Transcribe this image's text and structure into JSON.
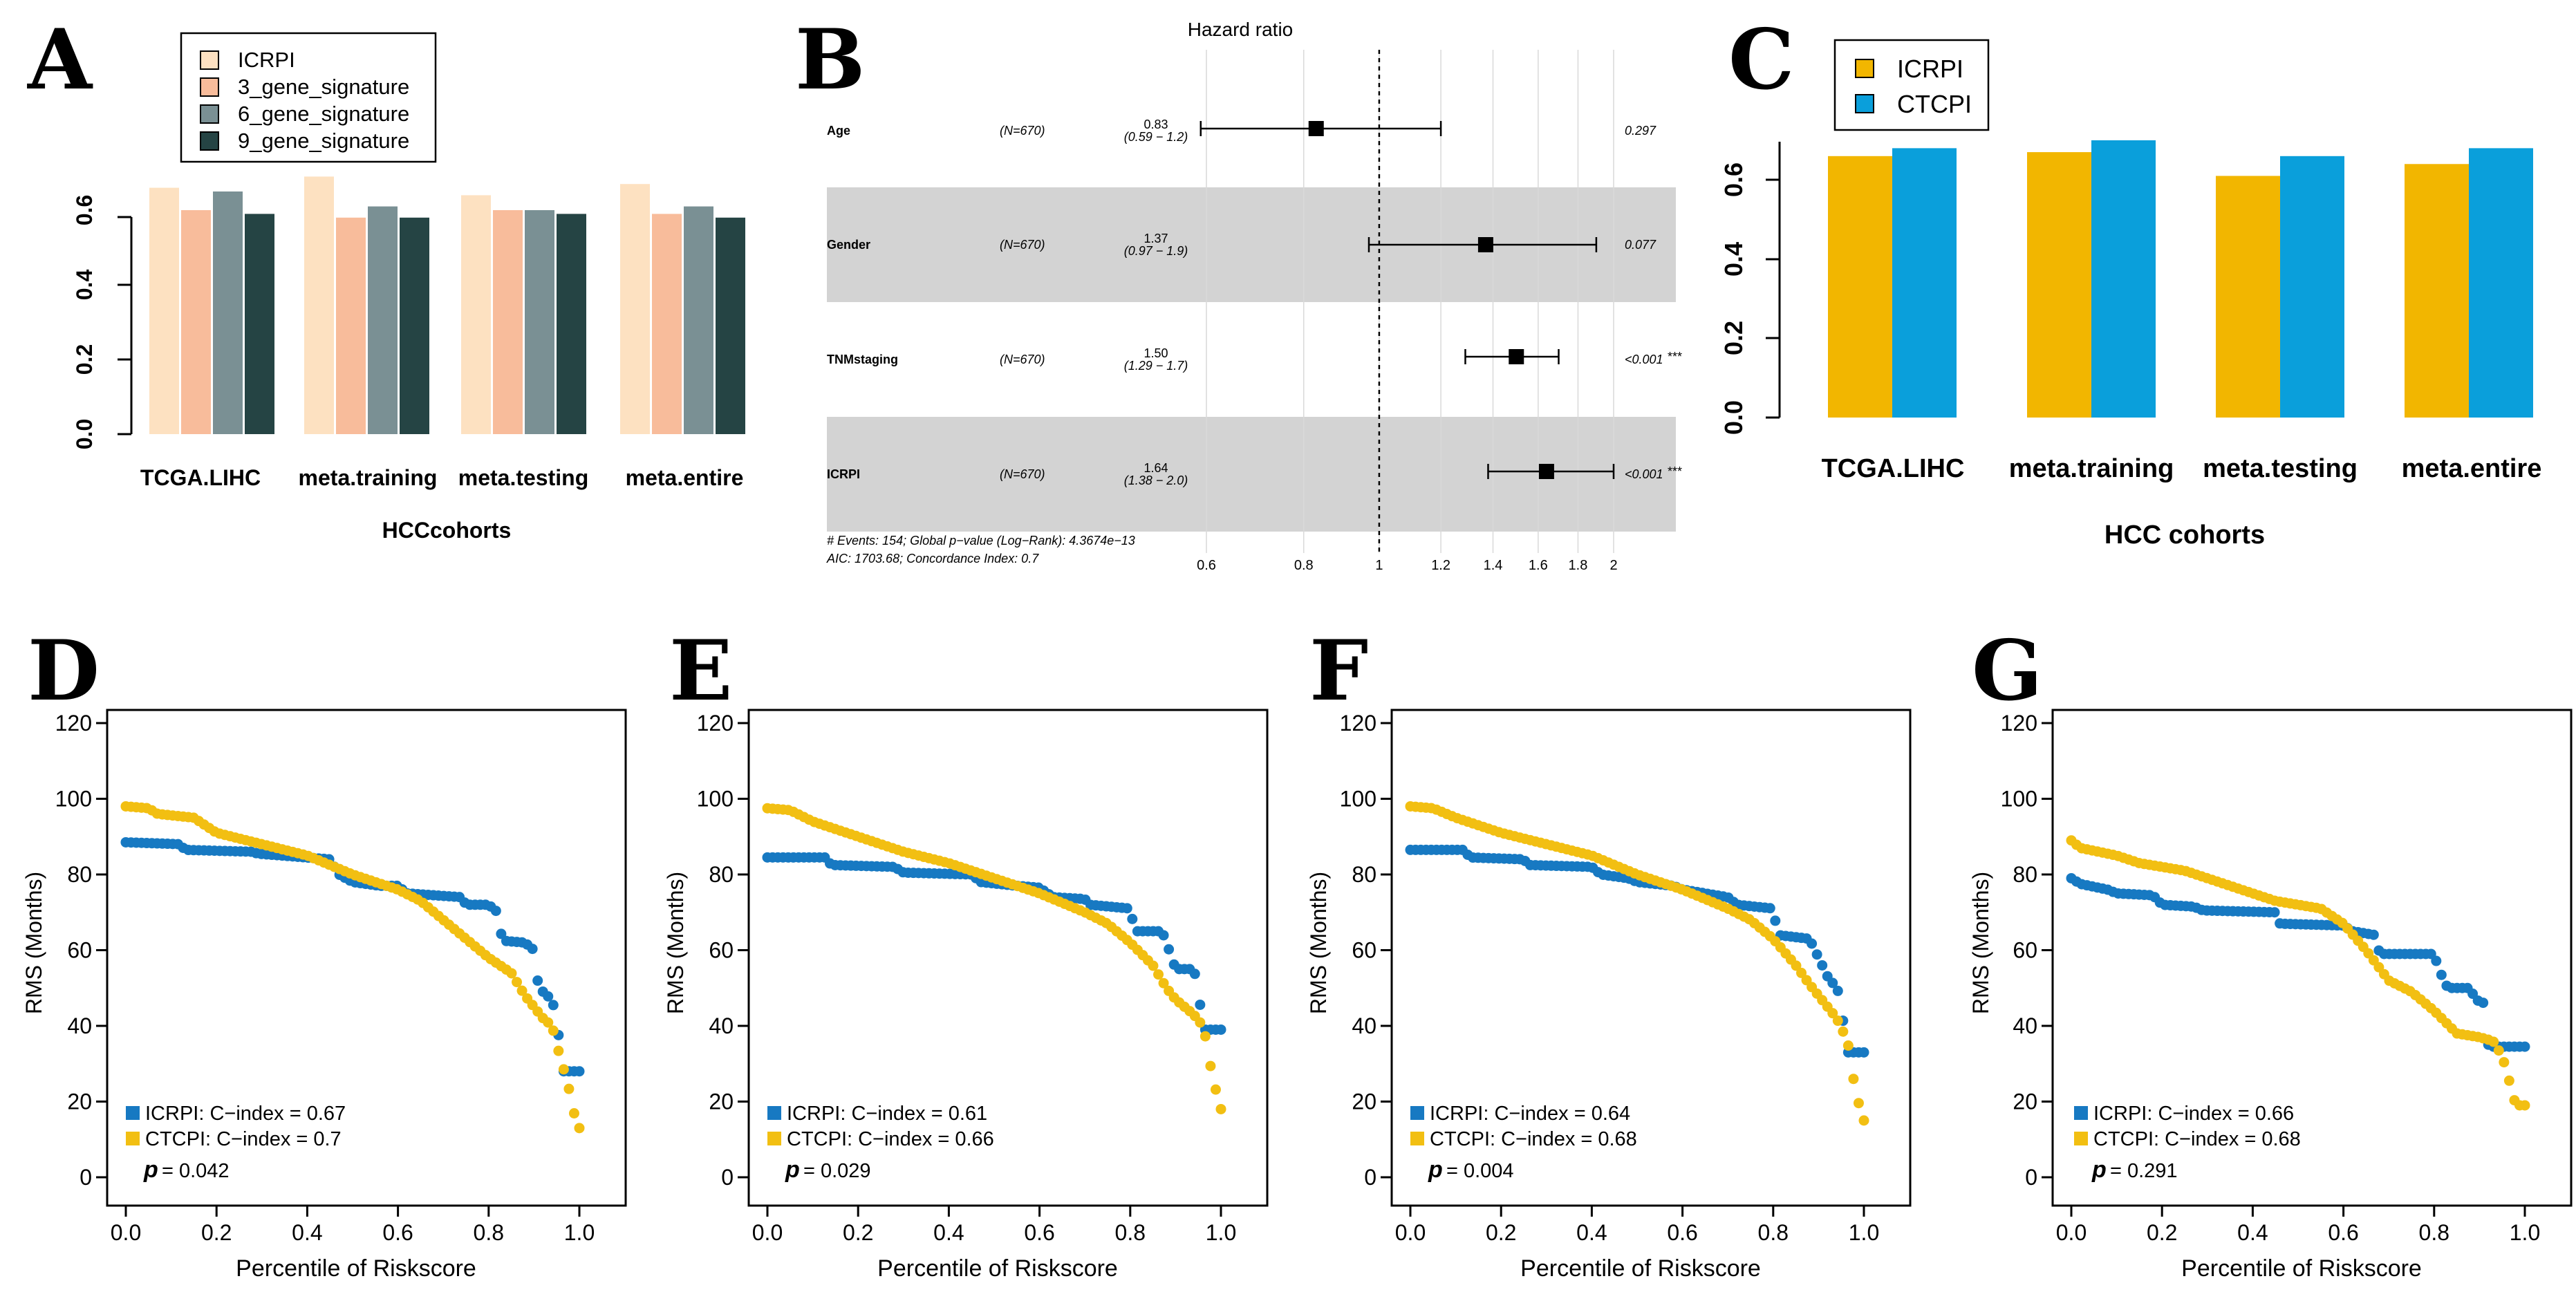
{
  "colors": {
    "icrpi_pale": "#FDE1C1",
    "gene3": "#F8BC9B",
    "gene6": "#7A9094",
    "gene9": "#254444",
    "icrpi_gold": "#F2B600",
    "ctcpi_blue": "#0A9FDB",
    "km_blue": "#1779C2",
    "km_gold": "#F2BF12",
    "forest_band": "#D3D3D3",
    "grid_line": "#D9D9D9"
  },
  "chart_data": [
    {
      "panel": "A",
      "type": "bar",
      "xlabel": "HCCcohorts",
      "ylabel": "",
      "ylim": [
        0,
        0.7
      ],
      "yticks": [
        0.0,
        0.2,
        0.4,
        0.6
      ],
      "ytick_labels": [
        "0.0",
        "0.2",
        "0.4",
        "0.6"
      ],
      "legend_position": "top-left",
      "categories": [
        "TCGA.LIHC",
        "meta.training",
        "meta.testing",
        "meta.entire"
      ],
      "series": [
        {
          "name": "ICRPI",
          "values": [
            0.66,
            0.69,
            0.64,
            0.67
          ]
        },
        {
          "name": "3_gene_signature",
          "values": [
            0.6,
            0.58,
            0.6,
            0.59
          ]
        },
        {
          "name": "6_gene_signature",
          "values": [
            0.65,
            0.61,
            0.6,
            0.61
          ]
        },
        {
          "name": "9_gene_signature",
          "values": [
            0.59,
            0.58,
            0.59,
            0.58
          ]
        }
      ]
    },
    {
      "panel": "B",
      "type": "forest",
      "title": "Hazard ratio",
      "x_ticks": [
        0.6,
        0.8,
        1,
        1.2,
        1.4,
        1.6,
        1.8,
        2
      ],
      "x_tick_labels": [
        "0.6",
        "0.8",
        "1",
        "1.2",
        "1.4",
        "1.6",
        "1.8",
        "2"
      ],
      "xlim": [
        0.55,
        2.3
      ],
      "reference": 1,
      "rows": [
        {
          "label": "Age",
          "n": "(N=670)",
          "hr": 0.83,
          "hr_label": "0.83",
          "ci_low": 0.59,
          "ci_high": 1.2,
          "ci_label": "(0.59 − 1.2)",
          "p": "0.297",
          "stars": ""
        },
        {
          "label": "Gender",
          "n": "(N=670)",
          "hr": 1.37,
          "hr_label": "1.37",
          "ci_low": 0.97,
          "ci_high": 1.9,
          "ci_label": "(0.97 − 1.9)",
          "p": "0.077",
          "stars": ""
        },
        {
          "label": "TNMstaging",
          "n": "(N=670)",
          "hr": 1.5,
          "hr_label": "1.50",
          "ci_low": 1.29,
          "ci_high": 1.7,
          "ci_label": "(1.29 − 1.7)",
          "p": "<0.001",
          "stars": "***"
        },
        {
          "label": "ICRPI",
          "n": "(N=670)",
          "hr": 1.64,
          "hr_label": "1.64",
          "ci_low": 1.38,
          "ci_high": 2.0,
          "ci_label": "(1.38 − 2.0)",
          "p": "<0.001",
          "stars": "***"
        }
      ],
      "footer_line1": "# Events: 154; Global p−value (Log−Rank): 4.3674e−13",
      "footer_line2": "AIC: 1703.68; Concordance Index: 0.7"
    },
    {
      "panel": "C",
      "type": "bar",
      "xlabel": "HCC cohorts",
      "ylabel": "",
      "ylim": [
        0,
        0.72
      ],
      "yticks": [
        0.0,
        0.2,
        0.4,
        0.6
      ],
      "ytick_labels": [
        "0.0",
        "0.2",
        "0.4",
        "0.6"
      ],
      "legend_position": "top-left",
      "categories": [
        "TCGA.LIHC",
        "meta.training",
        "meta.testing",
        "meta.entire"
      ],
      "series": [
        {
          "name": "ICRPI",
          "values": [
            0.66,
            0.67,
            0.61,
            0.64
          ]
        },
        {
          "name": "CTCPI",
          "values": [
            0.68,
            0.7,
            0.66,
            0.68
          ]
        }
      ]
    },
    {
      "panel": "D",
      "type": "scatter",
      "xlabel": "Percentile of Riskscore",
      "ylabel": "RMS (Months)",
      "xlim": [
        0,
        1
      ],
      "ylim": [
        0,
        120
      ],
      "xticks": [
        "0.0",
        "0.2",
        "0.4",
        "0.6",
        "0.8",
        "1.0"
      ],
      "yticks": [
        "0",
        "20",
        "40",
        "60",
        "80",
        "100",
        "120"
      ],
      "legend": [
        "ICRPI: C−index = 0.67",
        "CTCPI: C−index = 0.7"
      ],
      "p_label": "p",
      "p_value": "= 0.042",
      "series": [
        {
          "name": "ICRPI",
          "points": [
            [
              0.0,
              88.5
            ],
            [
              0.12,
              88
            ],
            [
              0.13,
              86.5
            ],
            [
              0.28,
              86
            ],
            [
              0.29,
              85.5
            ],
            [
              0.45,
              84
            ],
            [
              0.47,
              80
            ],
            [
              0.5,
              78
            ],
            [
              0.56,
              77
            ],
            [
              0.6,
              77
            ],
            [
              0.62,
              75
            ],
            [
              0.74,
              74
            ],
            [
              0.75,
              72
            ],
            [
              0.8,
              72
            ],
            [
              0.82,
              70
            ],
            [
              0.83,
              62.5
            ],
            [
              0.88,
              62
            ],
            [
              0.9,
              60
            ],
            [
              0.91,
              50
            ],
            [
              0.93,
              48
            ],
            [
              0.95,
              44
            ],
            [
              0.96,
              28
            ],
            [
              1.0,
              28
            ]
          ]
        },
        {
          "name": "CTCPI",
          "points": [
            [
              0.0,
              98
            ],
            [
              0.05,
              97.5
            ],
            [
              0.07,
              96
            ],
            [
              0.15,
              95
            ],
            [
              0.2,
              91
            ],
            [
              0.3,
              88
            ],
            [
              0.4,
              85
            ],
            [
              0.5,
              80
            ],
            [
              0.6,
              76
            ],
            [
              0.65,
              73
            ],
            [
              0.7,
              68
            ],
            [
              0.75,
              63
            ],
            [
              0.8,
              58
            ],
            [
              0.85,
              54
            ],
            [
              0.88,
              48
            ],
            [
              0.9,
              45
            ],
            [
              0.92,
              42
            ],
            [
              0.94,
              40
            ],
            [
              0.95,
              35
            ],
            [
              0.96,
              31
            ],
            [
              0.98,
              22
            ],
            [
              0.99,
              16
            ],
            [
              1.0,
              13
            ]
          ]
        }
      ]
    },
    {
      "panel": "E",
      "type": "scatter",
      "xlabel": "Percentile of Riskscore",
      "ylabel": "RMS (Months)",
      "xlim": [
        0,
        1
      ],
      "ylim": [
        0,
        120
      ],
      "xticks": [
        "0.0",
        "0.2",
        "0.4",
        "0.6",
        "0.8",
        "1.0"
      ],
      "yticks": [
        "0",
        "20",
        "40",
        "60",
        "80",
        "100",
        "120"
      ],
      "legend": [
        "ICRPI: C−index = 0.61",
        "CTCPI: C−index = 0.66"
      ],
      "p_label": "p",
      "p_value": "= 0.029",
      "series": [
        {
          "name": "ICRPI",
          "points": [
            [
              0.0,
              84.5
            ],
            [
              0.13,
              84.5
            ],
            [
              0.14,
              82.5
            ],
            [
              0.28,
              82
            ],
            [
              0.3,
              80.5
            ],
            [
              0.45,
              80
            ],
            [
              0.47,
              78
            ],
            [
              0.55,
              77
            ],
            [
              0.6,
              76.5
            ],
            [
              0.63,
              74
            ],
            [
              0.7,
              73.5
            ],
            [
              0.71,
              72
            ],
            [
              0.8,
              71
            ],
            [
              0.81,
              65
            ],
            [
              0.87,
              65
            ],
            [
              0.88,
              62
            ],
            [
              0.9,
              55
            ],
            [
              0.94,
              55
            ],
            [
              0.95,
              50
            ],
            [
              0.96,
              39
            ],
            [
              1.0,
              39
            ]
          ]
        },
        {
          "name": "CTCPI",
          "points": [
            [
              0.0,
              97.5
            ],
            [
              0.05,
              97
            ],
            [
              0.1,
              94
            ],
            [
              0.2,
              90
            ],
            [
              0.3,
              86
            ],
            [
              0.4,
              83
            ],
            [
              0.5,
              79
            ],
            [
              0.6,
              75
            ],
            [
              0.7,
              70
            ],
            [
              0.75,
              67
            ],
            [
              0.8,
              62
            ],
            [
              0.85,
              56
            ],
            [
              0.88,
              50
            ],
            [
              0.9,
              47
            ],
            [
              0.92,
              45
            ],
            [
              0.94,
              43
            ],
            [
              0.96,
              40
            ],
            [
              0.97,
              35
            ],
            [
              0.98,
              27
            ],
            [
              1.0,
              18
            ]
          ]
        }
      ]
    },
    {
      "panel": "F",
      "type": "scatter",
      "xlabel": "Percentile of Riskscore",
      "ylabel": "RMS (Months)",
      "xlim": [
        0,
        1
      ],
      "ylim": [
        0,
        120
      ],
      "xticks": [
        "0.0",
        "0.2",
        "0.4",
        "0.6",
        "0.8",
        "1.0"
      ],
      "yticks": [
        "0",
        "20",
        "40",
        "60",
        "80",
        "100",
        "120"
      ],
      "legend": [
        "ICRPI: C−index = 0.64",
        "CTCPI: C−index = 0.68"
      ],
      "p_label": "p",
      "p_value": "= 0.004",
      "series": [
        {
          "name": "ICRPI",
          "points": [
            [
              0.0,
              86.5
            ],
            [
              0.12,
              86.5
            ],
            [
              0.13,
              84.5
            ],
            [
              0.25,
              84
            ],
            [
              0.26,
              82.5
            ],
            [
              0.4,
              82
            ],
            [
              0.42,
              80
            ],
            [
              0.48,
              79
            ],
            [
              0.5,
              78
            ],
            [
              0.58,
              77
            ],
            [
              0.6,
              76
            ],
            [
              0.7,
              74
            ],
            [
              0.72,
              72
            ],
            [
              0.8,
              71
            ],
            [
              0.81,
              64
            ],
            [
              0.88,
              63
            ],
            [
              0.9,
              58
            ],
            [
              0.92,
              53
            ],
            [
              0.94,
              50
            ],
            [
              0.95,
              47
            ],
            [
              0.96,
              33
            ],
            [
              1.0,
              33
            ]
          ]
        },
        {
          "name": "CTCPI",
          "points": [
            [
              0.0,
              98
            ],
            [
              0.05,
              97.5
            ],
            [
              0.1,
              95
            ],
            [
              0.2,
              91
            ],
            [
              0.3,
              88
            ],
            [
              0.4,
              85
            ],
            [
              0.5,
              80
            ],
            [
              0.6,
              76
            ],
            [
              0.7,
              71
            ],
            [
              0.75,
              68
            ],
            [
              0.8,
              63
            ],
            [
              0.85,
              56
            ],
            [
              0.88,
              51
            ],
            [
              0.9,
              48
            ],
            [
              0.92,
              45
            ],
            [
              0.94,
              42
            ],
            [
              0.96,
              37
            ],
            [
              0.97,
              33
            ],
            [
              0.98,
              23
            ],
            [
              1.0,
              15
            ]
          ]
        }
      ]
    },
    {
      "panel": "G",
      "type": "scatter",
      "xlabel": "Percentile of Riskscore",
      "ylabel": "RMS (Months)",
      "xlim": [
        0,
        1
      ],
      "ylim": [
        0,
        120
      ],
      "xticks": [
        "0.0",
        "0.2",
        "0.4",
        "0.6",
        "0.8",
        "1.0"
      ],
      "yticks": [
        "0",
        "20",
        "40",
        "60",
        "80",
        "100",
        "120"
      ],
      "legend": [
        "ICRPI: C−index = 0.66",
        "CTCPI: C−index = 0.68"
      ],
      "p_label": "p",
      "p_value": "= 0.291",
      "series": [
        {
          "name": "ICRPI",
          "points": [
            [
              0.0,
              79
            ],
            [
              0.02,
              77.5
            ],
            [
              0.08,
              76
            ],
            [
              0.1,
              75
            ],
            [
              0.18,
              74.5
            ],
            [
              0.2,
              72
            ],
            [
              0.27,
              71.5
            ],
            [
              0.29,
              70.5
            ],
            [
              0.45,
              70
            ],
            [
              0.46,
              67
            ],
            [
              0.6,
              66.5
            ],
            [
              0.62,
              65
            ],
            [
              0.67,
              64
            ],
            [
              0.68,
              59
            ],
            [
              0.8,
              59
            ],
            [
              0.81,
              55
            ],
            [
              0.83,
              50
            ],
            [
              0.88,
              50
            ],
            [
              0.89,
              47
            ],
            [
              0.91,
              46
            ],
            [
              0.92,
              34.5
            ],
            [
              1.0,
              34.5
            ]
          ]
        },
        {
          "name": "CTCPI",
          "points": [
            [
              0.0,
              89
            ],
            [
              0.02,
              87
            ],
            [
              0.1,
              85
            ],
            [
              0.15,
              83
            ],
            [
              0.25,
              81
            ],
            [
              0.35,
              77
            ],
            [
              0.45,
              73
            ],
            [
              0.55,
              71
            ],
            [
              0.6,
              67
            ],
            [
              0.65,
              60
            ],
            [
              0.7,
              52
            ],
            [
              0.75,
              49
            ],
            [
              0.8,
              44
            ],
            [
              0.85,
              38
            ],
            [
              0.9,
              37
            ],
            [
              0.93,
              36
            ],
            [
              0.95,
              32
            ],
            [
              0.96,
              28
            ],
            [
              0.98,
              19
            ],
            [
              1.0,
              19
            ]
          ]
        }
      ]
    }
  ]
}
